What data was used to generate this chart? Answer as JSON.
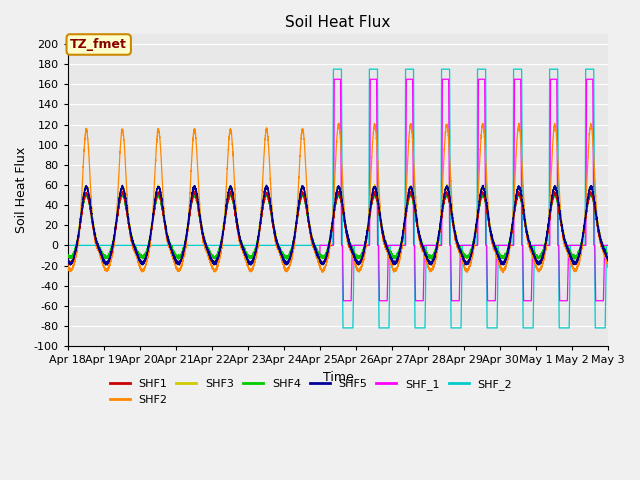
{
  "title": "Soil Heat Flux",
  "xlabel": "Time",
  "ylabel": "Soil Heat Flux",
  "ylim": [
    -100,
    210
  ],
  "yticks": [
    -100,
    -80,
    -60,
    -40,
    -20,
    0,
    20,
    40,
    60,
    80,
    100,
    120,
    140,
    160,
    180,
    200
  ],
  "series_colors": {
    "SHF1": "#cc0000",
    "SHF2": "#ff8800",
    "SHF3": "#cccc00",
    "SHF4": "#00cc00",
    "SHF5": "#000099",
    "SHF_1": "#ff00ff",
    "SHF_2": "#00cccc"
  },
  "annotation_text": "TZ_fmet",
  "annotation_bg": "#ffffcc",
  "annotation_border": "#cc8800",
  "annotation_text_color": "#880000",
  "plot_bg": "#e8e8e8",
  "title_fontsize": 11,
  "label_fontsize": 9,
  "tick_fontsize": 8,
  "n_days": 15,
  "x_tick_labels": [
    "Apr 18",
    "Apr 19",
    "Apr 20",
    "Apr 21",
    "Apr 22",
    "Apr 23",
    "Apr 24",
    "Apr 25",
    "Apr 26",
    "Apr 27",
    "Apr 28",
    "Apr 29",
    "Apr 30",
    "May 1",
    "May 2",
    "May 3"
  ]
}
